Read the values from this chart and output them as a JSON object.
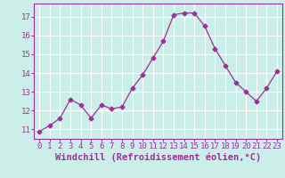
{
  "x": [
    0,
    1,
    2,
    3,
    4,
    5,
    6,
    7,
    8,
    9,
    10,
    11,
    12,
    13,
    14,
    15,
    16,
    17,
    18,
    19,
    20,
    21,
    22,
    23
  ],
  "y": [
    10.9,
    11.2,
    11.6,
    12.6,
    12.3,
    11.6,
    12.3,
    12.1,
    12.2,
    13.2,
    13.9,
    14.8,
    15.7,
    17.1,
    17.2,
    17.2,
    16.5,
    15.3,
    14.4,
    13.5,
    13.0,
    12.5,
    13.2,
    14.1
  ],
  "line_color": "#993399",
  "marker": "D",
  "marker_size": 2.5,
  "bg_color": "#cceee8",
  "grid_color": "#ffffff",
  "xlabel": "Windchill (Refroidissement éolien,°C)",
  "ylim": [
    10.5,
    17.7
  ],
  "yticks": [
    11,
    12,
    13,
    14,
    15,
    16,
    17
  ],
  "xticks": [
    0,
    1,
    2,
    3,
    4,
    5,
    6,
    7,
    8,
    9,
    10,
    11,
    12,
    13,
    14,
    15,
    16,
    17,
    18,
    19,
    20,
    21,
    22,
    23
  ],
  "tick_labelsize": 6.5,
  "xlabel_fontsize": 7.5
}
